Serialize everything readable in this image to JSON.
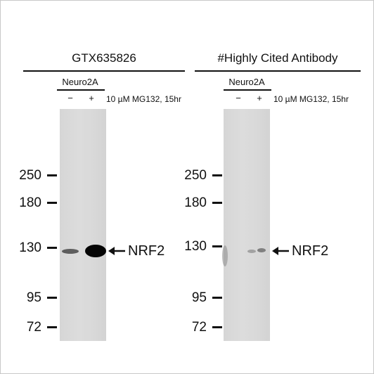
{
  "panels": [
    {
      "antibody": "GTX635826",
      "cell_line": "Neuro2A",
      "lanes": [
        "−",
        "+"
      ],
      "treatment": "10 µM MG132, 15hr",
      "markers": [
        "250",
        "180",
        "130",
        "95",
        "72"
      ],
      "target": "NRF2"
    },
    {
      "antibody": "#Highly Cited Antibody",
      "cell_line": "Neuro2A",
      "lanes": [
        "−",
        "+"
      ],
      "treatment": "10 µM MG132, 15hr",
      "markers": [
        "250",
        "180",
        "130",
        "95",
        "72"
      ],
      "target": "NRF2"
    }
  ]
}
